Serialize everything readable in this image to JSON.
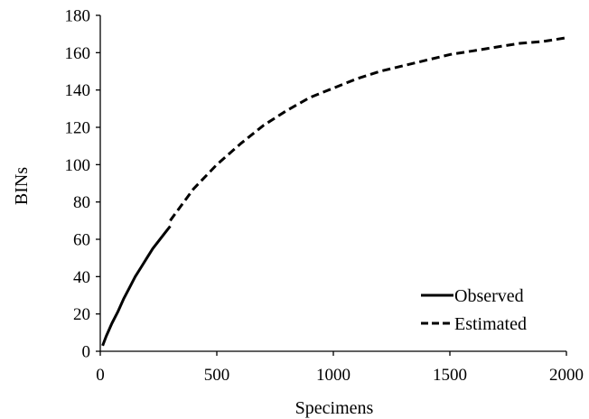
{
  "chart_data": {
    "type": "line",
    "title": "",
    "xlabel": "Specimens",
    "ylabel": "BINs",
    "xlim": [
      0,
      2000
    ],
    "ylim": [
      0,
      180
    ],
    "xticks": [
      "0",
      "500",
      "1000",
      "1500",
      "2000"
    ],
    "yticks": [
      "0",
      "20",
      "40",
      "60",
      "80",
      "100",
      "120",
      "140",
      "160",
      "180"
    ],
    "grid": false,
    "legend_position": "bottom-right",
    "series": [
      {
        "name": "Observed",
        "style": "solid",
        "color": "#000000",
        "x": [
          10,
          25,
          50,
          75,
          100,
          125,
          150,
          175,
          200,
          225,
          250,
          275,
          300
        ],
        "y": [
          3,
          8,
          15,
          21,
          28,
          34,
          40,
          45,
          50,
          55,
          59,
          63,
          67
        ]
      },
      {
        "name": "Estimated",
        "style": "dashed",
        "color": "#000000",
        "x": [
          300,
          400,
          500,
          600,
          700,
          800,
          900,
          1000,
          1100,
          1200,
          1300,
          1400,
          1500,
          1600,
          1700,
          1800,
          1900,
          2000
        ],
        "y": [
          70,
          87,
          100,
          111,
          121,
          129,
          136,
          141,
          146,
          150,
          153,
          156,
          159,
          161,
          163,
          165,
          166,
          168
        ]
      }
    ]
  }
}
